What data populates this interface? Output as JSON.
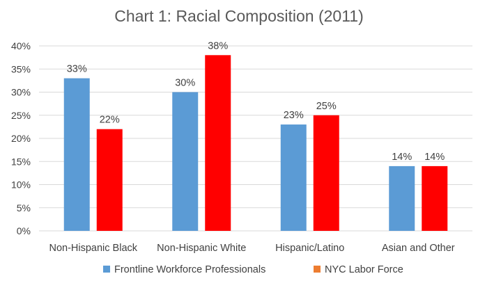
{
  "chart_data": {
    "type": "bar",
    "title": "Chart 1: Racial Composition (2011)",
    "xlabel": "",
    "ylabel": "",
    "categories": [
      "Non-Hispanic Black",
      "Non-Hispanic White",
      "Hispanic/Latino",
      "Asian and Other"
    ],
    "series": [
      {
        "name": "Frontline Workforce Professionals",
        "values": [
          33,
          30,
          23,
          14
        ],
        "labels": [
          "33%",
          "30%",
          "23%",
          "14%"
        ],
        "color": "#5B9BD5"
      },
      {
        "name": "NYC Labor Force",
        "values": [
          22,
          38,
          25,
          14
        ],
        "labels": [
          "22%",
          "38%",
          "25%",
          "14%"
        ],
        "color": "#FF0000",
        "legend_color": "#ED7D31"
      }
    ],
    "ylim": [
      0,
      40
    ],
    "yticks": [
      0,
      5,
      10,
      15,
      20,
      25,
      30,
      35,
      40
    ],
    "ytick_labels": [
      "0%",
      "5%",
      "10%",
      "15%",
      "20%",
      "25%",
      "30%",
      "35%",
      "40%"
    ],
    "grid": true,
    "legend_position": "bottom",
    "colors": {
      "grid": "#D9D9D9",
      "text": "#404040",
      "title": "#595959"
    }
  }
}
